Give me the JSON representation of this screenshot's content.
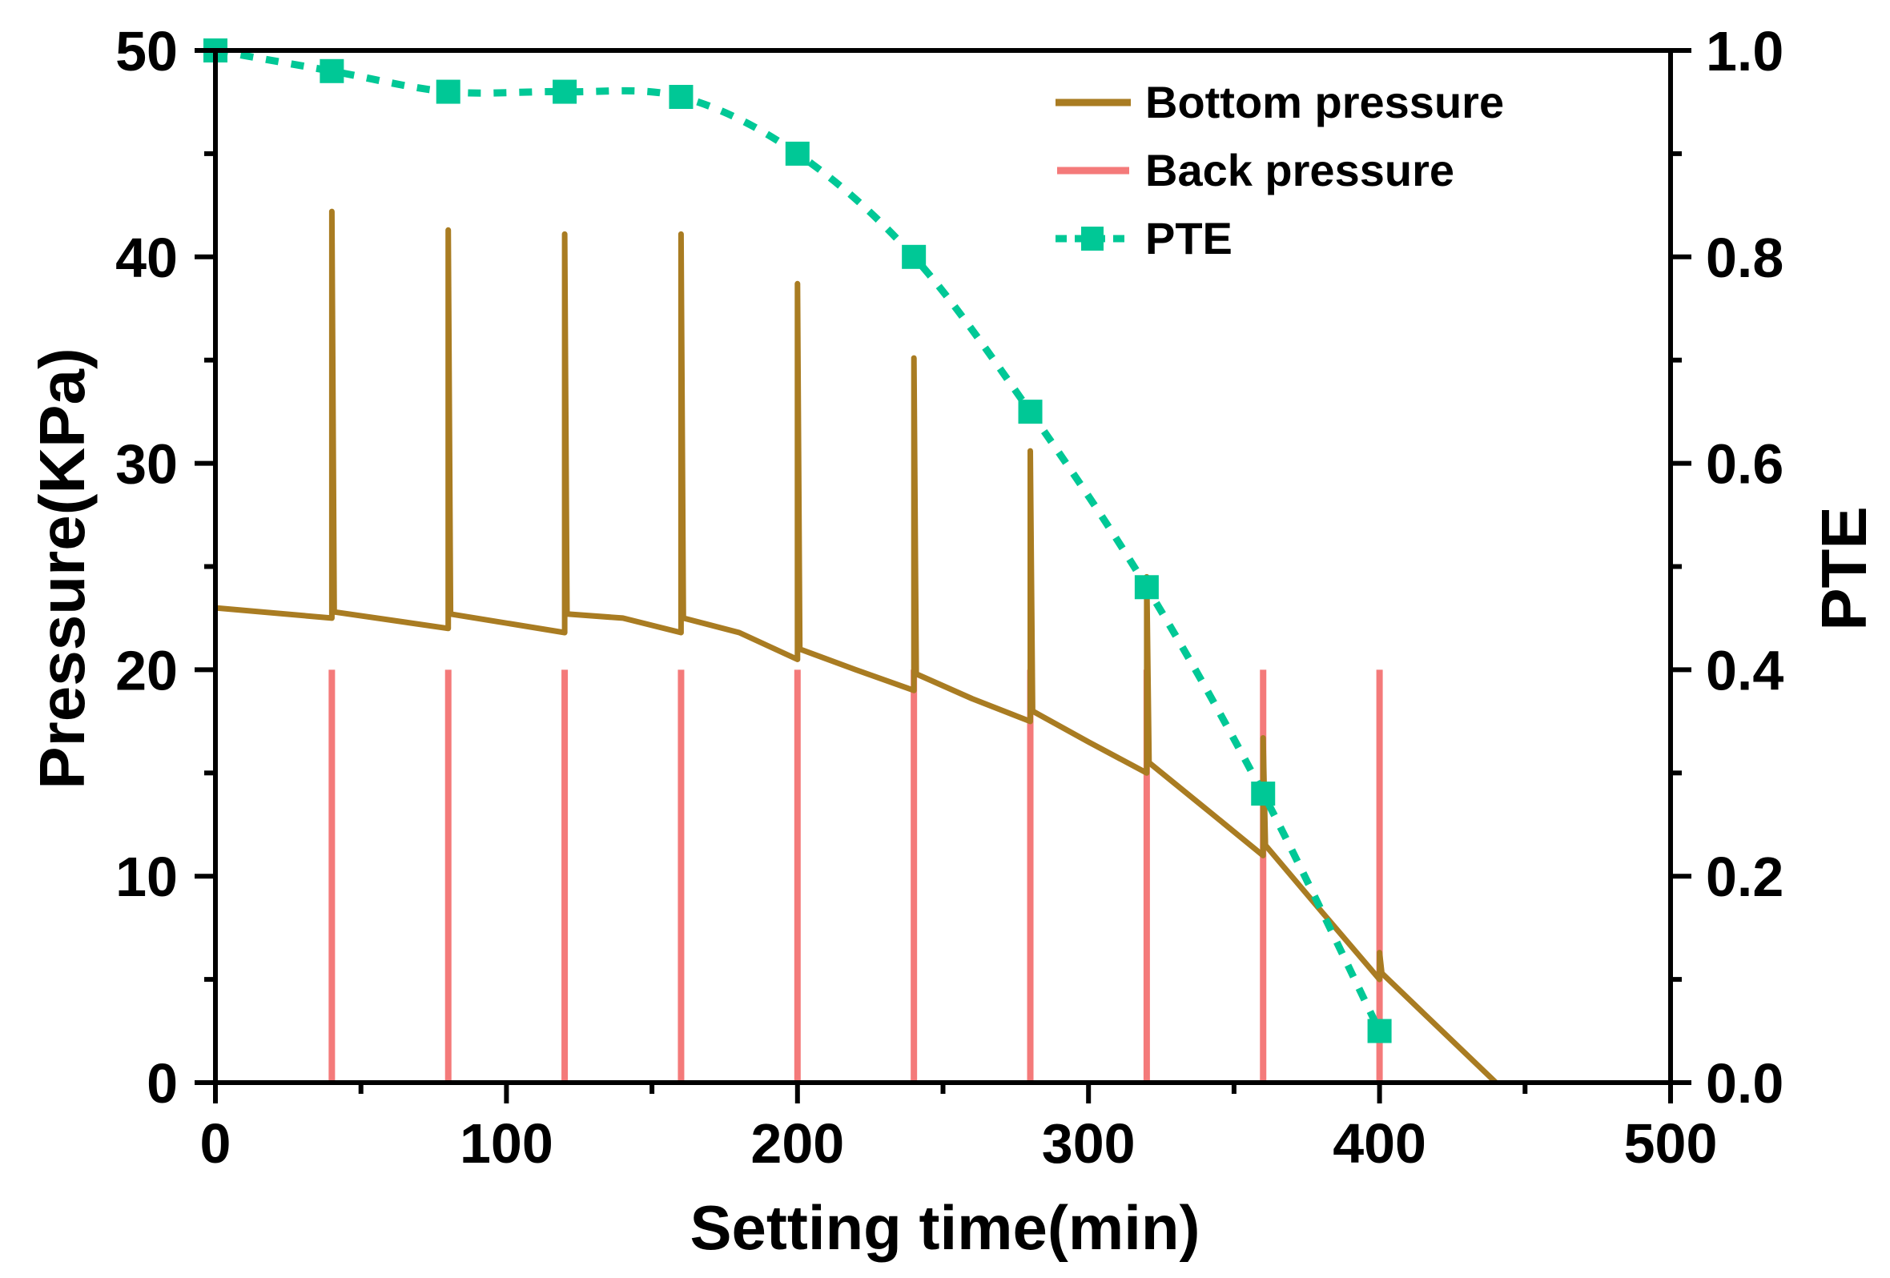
{
  "chart_data": {
    "type": "line",
    "title": "",
    "xlabel": "Setting time(min)",
    "ylabel": "Pressure(KPa)",
    "y2label": "PTE",
    "xlim": [
      0,
      500
    ],
    "ylim": [
      0,
      50
    ],
    "y2lim": [
      0.0,
      1.0
    ],
    "xticks": [
      "0",
      "100",
      "200",
      "300",
      "400",
      "500"
    ],
    "yticks": [
      "0",
      "10",
      "20",
      "30",
      "40",
      "50"
    ],
    "y2ticks": [
      "0.0",
      "0.2",
      "0.4",
      "0.6",
      "0.8",
      "1.0"
    ],
    "grid": false,
    "legend_position": "top-right",
    "series": [
      {
        "name": "Bottom pressure",
        "axis": "left",
        "color": "#a97c22",
        "style": "solid",
        "points": [
          [
            0,
            23
          ],
          [
            40,
            22.5
          ],
          [
            40,
            42.2
          ],
          [
            40.8,
            22.8
          ],
          [
            80,
            22
          ],
          [
            80,
            41.3
          ],
          [
            80.8,
            22.7
          ],
          [
            120,
            21.8
          ],
          [
            120,
            41.1
          ],
          [
            120.8,
            22.7
          ],
          [
            140,
            22.5
          ],
          [
            160,
            21.8
          ],
          [
            160,
            41.1
          ],
          [
            160.8,
            22.5
          ],
          [
            180,
            21.8
          ],
          [
            200,
            20.5
          ],
          [
            200,
            38.7
          ],
          [
            200.8,
            21
          ],
          [
            220,
            20
          ],
          [
            240,
            19
          ],
          [
            240,
            35.1
          ],
          [
            240.8,
            19.8
          ],
          [
            260,
            18.6
          ],
          [
            280,
            17.5
          ],
          [
            280,
            30.6
          ],
          [
            280.8,
            18
          ],
          [
            300,
            16.5
          ],
          [
            320,
            15
          ],
          [
            320,
            24.5
          ],
          [
            320.8,
            15.5
          ],
          [
            340,
            13.3
          ],
          [
            360,
            11
          ],
          [
            360,
            16.7
          ],
          [
            360.8,
            11.5
          ],
          [
            380,
            8.3
          ],
          [
            400,
            5
          ],
          [
            400,
            6.3
          ],
          [
            400.8,
            5.3
          ],
          [
            420,
            2.7
          ],
          [
            440,
            0
          ]
        ]
      },
      {
        "name": "Back pressure",
        "axis": "left",
        "color": "#f47a7a",
        "style": "impulse",
        "x": [
          40,
          80,
          120,
          160,
          200,
          240,
          280,
          320,
          360,
          400
        ],
        "values": [
          20,
          20,
          20,
          20,
          20,
          20,
          20,
          20,
          20,
          20
        ]
      },
      {
        "name": "PTE",
        "axis": "right",
        "color": "#00c896",
        "style": "dashed-square-markers",
        "x": [
          0,
          40,
          80,
          120,
          160,
          200,
          240,
          280,
          320,
          360,
          400
        ],
        "values": [
          1.0,
          0.98,
          0.96,
          0.96,
          0.955,
          0.9,
          0.8,
          0.65,
          0.48,
          0.28,
          0.05
        ]
      }
    ]
  }
}
